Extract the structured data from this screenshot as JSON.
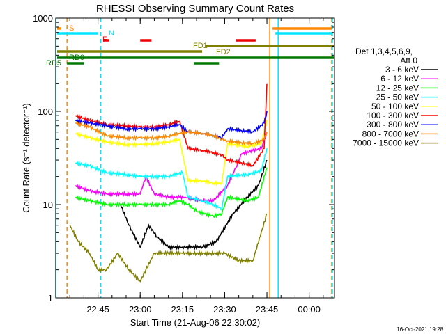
{
  "chart_data": {
    "type": "line",
    "title": "RHESSI Observing Summary Count Rates",
    "xlabel": "Start Time (21-Aug-06 22:30:02)",
    "ylabel": "Count Rate (s⁻¹ detector⁻¹)",
    "y_scale": "log",
    "ylim": [
      1,
      1000
    ],
    "xlim": [
      "22:30",
      "00:09"
    ],
    "x_ticks": [
      "22:45",
      "23:00",
      "23:15",
      "23:30",
      "23:45",
      "00:00"
    ],
    "y_ticks": [
      "1",
      "10",
      "100",
      "1000"
    ],
    "legend_header": [
      "Det 1,3,4,5,6,9,",
      "Att 0"
    ],
    "legend_placement": "right",
    "timestamp": "16-Oct-2021 19:28",
    "flag_labels": {
      "S": "S",
      "N": "N",
      "F": "F",
      "FD1": "FD1",
      "FD2": "FD2",
      "RD0": "RD0",
      "RD5": "RD5"
    },
    "flags": [
      {
        "label": "S",
        "color": "#ff8800",
        "segments": [
          [
            "22:30",
            "22:32"
          ],
          [
            "23:47",
            "00:08"
          ]
        ]
      },
      {
        "label": "N",
        "color": "#00e5ff",
        "segments": [
          [
            "22:30",
            "22:45"
          ],
          [
            "23:48",
            "00:08"
          ]
        ]
      },
      {
        "label": "F",
        "color": "#ee0000",
        "segments": [
          [
            "22:47",
            "22:49"
          ],
          [
            "23:00",
            "23:04"
          ],
          [
            "23:34",
            "23:41"
          ]
        ]
      },
      {
        "label": "FD1",
        "color": "#808000",
        "segments": [
          [
            "23:23",
            "00:09"
          ]
        ]
      },
      {
        "label": "FD2",
        "color": "#808000",
        "segments": [
          [
            "22:30",
            "23:22"
          ]
        ]
      },
      {
        "label": "RD0",
        "color": "#007700",
        "segments": [
          [
            "22:30",
            "00:09"
          ]
        ]
      },
      {
        "label": "RD5",
        "color": "#007700",
        "segments": [
          [
            "22:34",
            "22:40"
          ],
          [
            "23:19",
            "23:28"
          ]
        ]
      }
    ],
    "vertical_markers": [
      {
        "time": "22:30",
        "color": "#00e5ff",
        "style": "solid"
      },
      {
        "time": "22:34",
        "color": "#ff8800",
        "style": "dashed"
      },
      {
        "time": "22:46",
        "color": "#00e5ff",
        "style": "dashed"
      },
      {
        "time": "23:46",
        "color": "#ff8800",
        "style": "solid"
      },
      {
        "time": "23:49",
        "color": "#00e5ff",
        "style": "solid"
      },
      {
        "time": "00:08",
        "color": "#ff8800",
        "style": "dashed"
      },
      {
        "time": "00:08",
        "color": "#00e5ff",
        "style": "dashed"
      }
    ],
    "series": [
      {
        "name": "3 - 6 keV",
        "color": "#000000",
        "points": [
          [
            "22:53",
            10
          ],
          [
            "22:56",
            6
          ],
          [
            "23:00",
            3.5
          ],
          [
            "23:03",
            6
          ],
          [
            "23:06",
            4.5
          ],
          [
            "23:10",
            3.5
          ],
          [
            "23:15",
            3.5
          ],
          [
            "23:22",
            3.5
          ],
          [
            "23:27",
            4
          ],
          [
            "23:33",
            8
          ],
          [
            "23:38",
            12
          ],
          [
            "23:42",
            16
          ],
          [
            "23:45",
            30
          ]
        ]
      },
      {
        "name": "6 - 12 keV",
        "color": "#ff00ff",
        "points": [
          [
            "22:37",
            16
          ],
          [
            "22:42",
            14
          ],
          [
            "22:48",
            13
          ],
          [
            "22:55",
            13
          ],
          [
            "23:00",
            13
          ],
          [
            "23:02",
            20
          ],
          [
            "23:05",
            13
          ],
          [
            "23:10",
            12
          ],
          [
            "23:14",
            12
          ],
          [
            "23:16",
            12
          ],
          [
            "23:22",
            11
          ],
          [
            "23:26",
            11
          ],
          [
            "23:31",
            16
          ],
          [
            "23:34",
            25
          ],
          [
            "23:36",
            35
          ],
          [
            "23:40",
            38
          ],
          [
            "23:43",
            40
          ],
          [
            "23:45",
            60
          ]
        ]
      },
      {
        "name": "12 - 25 keV",
        "color": "#00ff00",
        "points": [
          [
            "22:37",
            12
          ],
          [
            "22:42",
            11
          ],
          [
            "22:48",
            10
          ],
          [
            "22:55",
            10
          ],
          [
            "23:00",
            10
          ],
          [
            "23:05",
            10
          ],
          [
            "23:10",
            10
          ],
          [
            "23:14",
            11
          ],
          [
            "23:17",
            10
          ],
          [
            "23:20",
            8.5
          ],
          [
            "23:26",
            7.5
          ],
          [
            "23:29",
            8
          ],
          [
            "23:31",
            12
          ],
          [
            "23:38",
            11
          ],
          [
            "23:42",
            12
          ],
          [
            "23:45",
            25
          ]
        ]
      },
      {
        "name": "25 - 50 keV",
        "color": "#00ffff",
        "points": [
          [
            "22:37",
            28
          ],
          [
            "22:42",
            26
          ],
          [
            "22:48",
            22
          ],
          [
            "22:55",
            21
          ],
          [
            "23:00",
            20
          ],
          [
            "23:05",
            20
          ],
          [
            "23:10",
            20
          ],
          [
            "23:15",
            22
          ],
          [
            "23:17",
            12
          ],
          [
            "23:22",
            11
          ],
          [
            "23:26",
            10
          ],
          [
            "23:29",
            9
          ],
          [
            "23:31",
            20
          ],
          [
            "23:38",
            21
          ],
          [
            "23:43",
            23
          ],
          [
            "23:45",
            40
          ]
        ]
      },
      {
        "name": "50 - 100 keV",
        "color": "#ffff00",
        "points": [
          [
            "22:37",
            58
          ],
          [
            "22:42",
            52
          ],
          [
            "22:48",
            47
          ],
          [
            "22:55",
            44
          ],
          [
            "23:00",
            44
          ],
          [
            "23:05",
            45
          ],
          [
            "23:10",
            47
          ],
          [
            "23:14",
            50
          ],
          [
            "23:17",
            18
          ],
          [
            "23:22",
            18
          ],
          [
            "23:26",
            17
          ],
          [
            "23:29",
            17
          ],
          [
            "23:31",
            45
          ],
          [
            "23:38",
            42
          ],
          [
            "23:43",
            45
          ],
          [
            "23:45",
            80
          ]
        ]
      },
      {
        "name": "100 - 300 keV",
        "color": "#ff0000",
        "points": [
          [
            "22:37",
            90
          ],
          [
            "22:42",
            80
          ],
          [
            "22:48",
            72
          ],
          [
            "22:55",
            70
          ],
          [
            "23:00",
            68
          ],
          [
            "23:05",
            68
          ],
          [
            "23:10",
            72
          ],
          [
            "23:14",
            78
          ],
          [
            "23:17",
            40
          ],
          [
            "23:22",
            38
          ],
          [
            "23:26",
            36
          ],
          [
            "23:29",
            34
          ],
          [
            "23:31",
            30
          ],
          [
            "23:36",
            28
          ],
          [
            "23:40",
            26
          ],
          [
            "23:44",
            40
          ],
          [
            "23:45",
            200
          ]
        ]
      },
      {
        "name": "300 - 800 keV",
        "color": "#0000ff",
        "points": [
          [
            "22:37",
            80
          ],
          [
            "22:42",
            75
          ],
          [
            "22:48",
            70
          ],
          [
            "22:55",
            65
          ],
          [
            "23:00",
            65
          ],
          [
            "23:05",
            65
          ],
          [
            "23:10",
            68
          ],
          [
            "23:14",
            72
          ],
          [
            "23:17",
            60
          ],
          [
            "23:22",
            58
          ],
          [
            "23:26",
            55
          ],
          [
            "23:29",
            52
          ],
          [
            "23:31",
            65
          ],
          [
            "23:36",
            62
          ],
          [
            "23:40",
            60
          ],
          [
            "23:44",
            75
          ],
          [
            "23:45",
            100
          ]
        ]
      },
      {
        "name": "800 - 7000 keV",
        "color": "#ff8800",
        "points": [
          [
            "22:37",
            75
          ],
          [
            "22:42",
            68
          ],
          [
            "22:48",
            55
          ],
          [
            "22:55",
            52
          ],
          [
            "23:00",
            52
          ],
          [
            "23:05",
            52
          ],
          [
            "23:10",
            54
          ],
          [
            "23:14",
            58
          ],
          [
            "23:17",
            60
          ],
          [
            "23:22",
            58
          ],
          [
            "23:26",
            55
          ],
          [
            "23:29",
            50
          ],
          [
            "23:31",
            48
          ],
          [
            "23:36",
            46
          ],
          [
            "23:40",
            45
          ],
          [
            "23:44",
            50
          ],
          [
            "23:45",
            60
          ]
        ]
      },
      {
        "name": "7000 - 15000 keV",
        "color": "#808000",
        "points": [
          [
            "22:35",
            6
          ],
          [
            "22:38",
            4
          ],
          [
            "22:42",
            3
          ],
          [
            "22:45",
            2
          ],
          [
            "22:48",
            2
          ],
          [
            "22:52",
            3
          ],
          [
            "22:56",
            2
          ],
          [
            "23:00",
            1.5
          ],
          [
            "23:02",
            2
          ],
          [
            "23:05",
            3
          ],
          [
            "23:10",
            3
          ],
          [
            "23:15",
            3
          ],
          [
            "23:20",
            3
          ],
          [
            "23:25",
            3
          ],
          [
            "23:30",
            3
          ],
          [
            "23:35",
            2.5
          ],
          [
            "23:40",
            2.5
          ],
          [
            "23:45",
            8
          ]
        ]
      }
    ]
  }
}
